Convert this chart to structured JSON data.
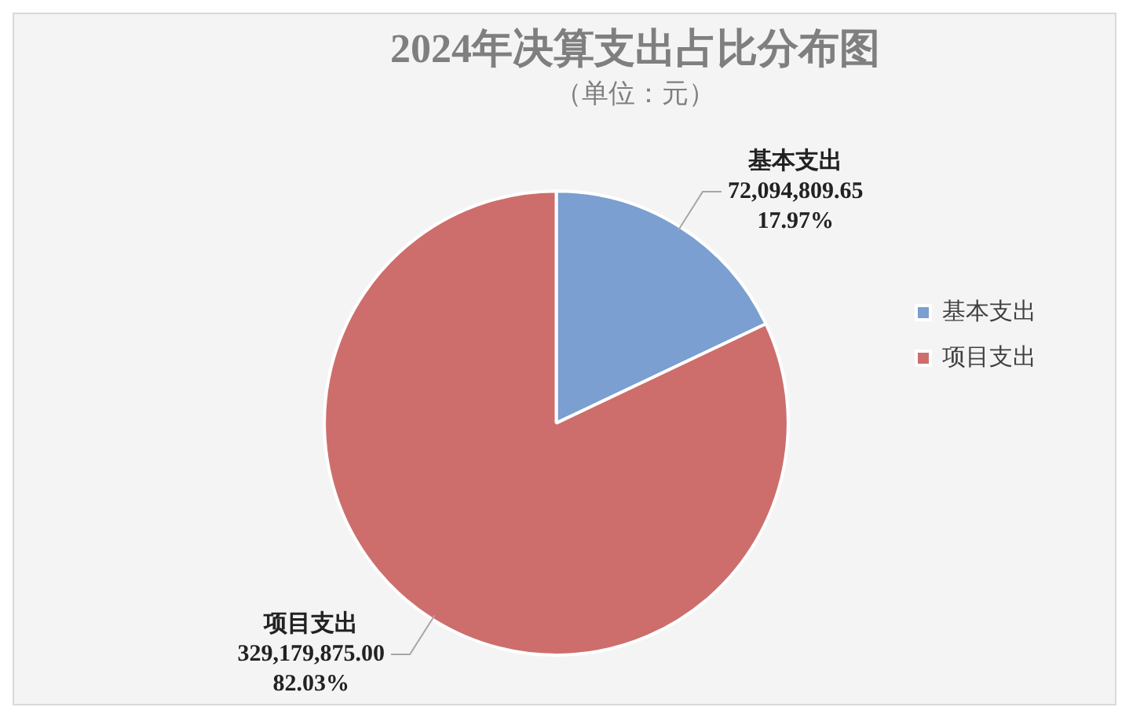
{
  "chart_data": {
    "type": "pie",
    "title": "2024年决算支出占比分布图",
    "subtitle": "（单位：元）",
    "categories": [
      "基本支出",
      "项目支出"
    ],
    "values": [
      72094809.65,
      329179875.0
    ],
    "colors": [
      "#7a9fd0",
      "#cd6e6c"
    ],
    "value_labels": [
      "72,094,809.65\n17.97%",
      "329,179,875.00\n82.03%"
    ],
    "legend": "right"
  }
}
